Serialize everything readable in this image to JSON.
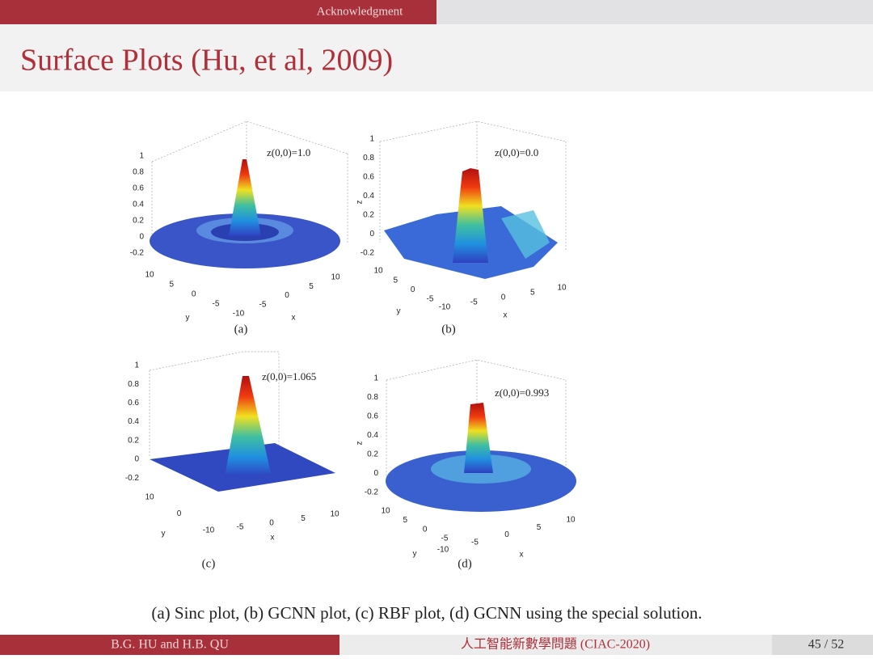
{
  "header": {
    "section": "Acknowledgment"
  },
  "title": "Surface Plots (Hu, et al, 2009)",
  "panels": [
    {
      "label": "(a)",
      "annotation": "z(0,0)=1.0",
      "z_ticks": [
        "1",
        "0.8",
        "0.6",
        "0.4",
        "0.2",
        "0",
        "-0.2"
      ],
      "y_ticks": [
        "10",
        "5",
        "0",
        "-5"
      ],
      "x_ticks": [
        "-10",
        "-5",
        "0",
        "5",
        "10"
      ],
      "y_label": "y",
      "x_label": "x"
    },
    {
      "label": "(b)",
      "annotation": "z(0,0)=0.0",
      "z_label": "z",
      "z_ticks": [
        "1",
        "0.8",
        "0.6",
        "0.4",
        "0.2",
        "0",
        "-0.2"
      ],
      "y_ticks": [
        "10",
        "5",
        "0",
        "-5"
      ],
      "x_ticks": [
        "-10",
        "-5",
        "0",
        "5",
        "10"
      ],
      "y_label": "y",
      "x_label": "x"
    },
    {
      "label": "(c)",
      "annotation": "z(0,0)=1.065",
      "z_ticks": [
        "1",
        "0.8",
        "0.6",
        "0.4",
        "0.2",
        "0",
        "-0.2"
      ],
      "y_ticks": [
        "10",
        "0",
        "-10"
      ],
      "x_ticks": [
        "-5",
        "0",
        "5",
        "10"
      ],
      "y_label": "y",
      "x_label": "x"
    },
    {
      "label": "(d)",
      "annotation": "z(0,0)=0.993",
      "z_label": "z",
      "z_ticks": [
        "1",
        "0.8",
        "0.6",
        "0.4",
        "0.2",
        "0",
        "-0.2"
      ],
      "y_ticks": [
        "10",
        "5",
        "0",
        "-5"
      ],
      "x_ticks": [
        "-10",
        "-5",
        "0",
        "5",
        "10"
      ],
      "y_label": "y",
      "x_label": "x"
    }
  ],
  "caption": "(a) Sinc plot, (b) GCNN plot, (c) RBF plot, (d) GCNN using the special solution.",
  "footer": {
    "authors": "B.G. HU and H.B. QU",
    "event": "人工智能新數學問題 (CIAC-2020)",
    "page": "45 / 52"
  }
}
